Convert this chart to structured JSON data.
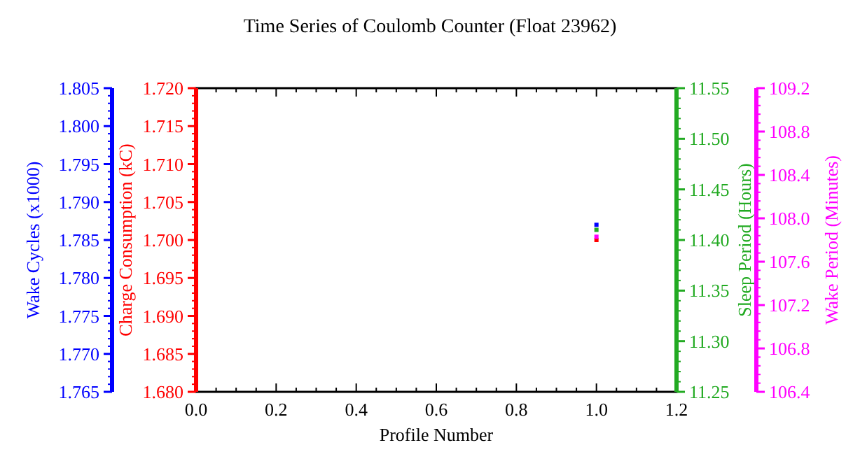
{
  "chart_data": [
    {
      "type": "scatter",
      "title": "Time Series of Coulomb Counter (Float 23962)",
      "xlabel": "Profile Number",
      "ylabel": "Wake Cycles (x1000)",
      "y2label": "Charge Consumption (kC)",
      "y3label": "Sleep Period (Hours)",
      "x": [
        1
      ],
      "xlim": [
        0,
        1.2
      ],
      "xticks": [
        {
          "value": 0,
          "label": "0.0"
        },
        {
          "value": 0.2,
          "label": "0.2"
        },
        {
          "value": 0.4,
          "label": "0.4"
        },
        {
          "value": 0.6,
          "label": "0.6"
        },
        {
          "value": 0.8,
          "label": "0.8"
        },
        {
          "value": 1,
          "label": "1.0"
        },
        {
          "value": 1.2,
          "label": "1.2"
        }
      ],
      "ylim": [
        1.765,
        1.805
      ],
      "yticks": [
        1.765,
        {
          "value": 1.77,
          "label": "1.770"
        },
        1.775,
        {
          "value": 1.78,
          "label": "1.780"
        },
        1.785,
        {
          "value": 1.79,
          "label": "1.790"
        },
        1.795,
        {
          "value": 1.8,
          "label": "1.800"
        },
        1.805
      ],
      "y2lim": [
        1.68,
        1.72
      ],
      "y2ticks": [
        {
          "value": 1.68,
          "label": "1.680"
        },
        1.685,
        {
          "value": 1.69,
          "label": "1.690"
        },
        1.695,
        {
          "value": 1.7,
          "label": "1.700"
        },
        1.705,
        {
          "value": 1.71,
          "label": "1.710"
        },
        1.715,
        {
          "value": 1.72,
          "label": "1.720"
        }
      ],
      "y3lim": [
        11.25,
        11.55
      ],
      "y3ticks": [
        11.25,
        {
          "value": 11.3,
          "label": "11.30"
        },
        11.35,
        {
          "value": 11.4,
          "label": "11.40"
        },
        11.45,
        {
          "value": 11.5,
          "label": "11.50"
        },
        11.55
      ],
      "marker": "square",
      "series": [
        {
          "color": "#0000ff",
          "values": [
            1.787
          ]
        },
        {
          "color": "#ff0000",
          "values": [
            1.7
          ],
          "axis": "y2"
        },
        {
          "color": "#22aa22",
          "values": [
            11.41
          ],
          "axis": "y3"
        }
      ]
    },
    {
      "type": "scatter",
      "ylabel": "Wake Period (Minutes)",
      "x": [
        1
      ],
      "xlim": [
        0,
        1.2
      ],
      "tick_labels": "y",
      "ylim": [
        106.4,
        109.2
      ],
      "yticks": [
        106.4,
        106.8,
        107.2,
        107.6,
        {
          "value": 108,
          "label": "108.0"
        },
        108.4,
        108.8,
        109.2
      ],
      "marker": "square",
      "series": [
        {
          "color": "#ff00ff",
          "values": [
            107.83
          ]
        }
      ]
    }
  ]
}
